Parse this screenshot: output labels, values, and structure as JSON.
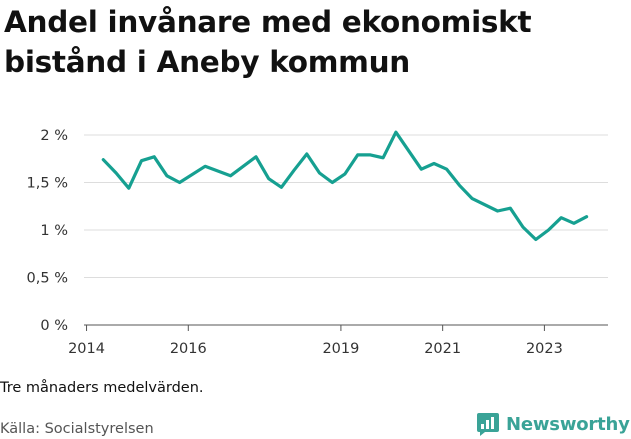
{
  "header": {
    "title": "Andel invånare med ekonomiskt bistånd i Aneby kommun"
  },
  "footer": {
    "note": "Tre månaders medelvärden.",
    "source": "Källa: Socialstyrelsen",
    "brand": "Newsworthy"
  },
  "colors": {
    "line": "#16a091",
    "brand": "#3aa397",
    "grid": "#dddddd",
    "axis": "#555555"
  },
  "icons": {
    "brand_logo": "newsworthy-bar-chart-icon"
  },
  "chart_data": {
    "type": "line",
    "title": "Andel invånare med ekonomiskt bistånd i Aneby kommun",
    "xlabel": "",
    "ylabel": "",
    "ylim": [
      0,
      2
    ],
    "xlim": [
      2013.95,
      2024.25
    ],
    "grid": true,
    "legend": "none",
    "y_ticks": [
      0,
      0.5,
      1,
      1.5,
      2
    ],
    "y_tick_labels": [
      "0 %",
      "0,5 %",
      "1 %",
      "1,5 %",
      "2 %"
    ],
    "x_ticks": [
      2014,
      2016,
      2019,
      2021,
      2023
    ],
    "x_tick_labels": [
      "2014",
      "2016",
      "2019",
      "2021",
      "2023"
    ],
    "series": [
      {
        "name": "Andel invånare med ekonomiskt bistånd",
        "x": [
          2014.33,
          2014.58,
          2014.83,
          2015.08,
          2015.33,
          2015.58,
          2015.83,
          2016.33,
          2016.83,
          2017.33,
          2017.58,
          2017.83,
          2018.08,
          2018.33,
          2018.58,
          2018.83,
          2019.08,
          2019.33,
          2019.58,
          2019.83,
          2020.08,
          2020.58,
          2020.83,
          2021.08,
          2021.33,
          2021.58,
          2022.08,
          2022.33,
          2022.58,
          2022.83,
          2023.08,
          2023.33,
          2023.58,
          2023.83
        ],
        "values": [
          1.74,
          1.6,
          1.44,
          1.73,
          1.77,
          1.57,
          1.5,
          1.67,
          1.57,
          1.77,
          1.54,
          1.45,
          1.63,
          1.8,
          1.6,
          1.5,
          1.59,
          1.79,
          1.79,
          1.76,
          2.03,
          1.64,
          1.7,
          1.64,
          1.47,
          1.33,
          1.2,
          1.23,
          1.03,
          0.9,
          1.0,
          1.13,
          1.07,
          1.14
        ]
      }
    ]
  }
}
